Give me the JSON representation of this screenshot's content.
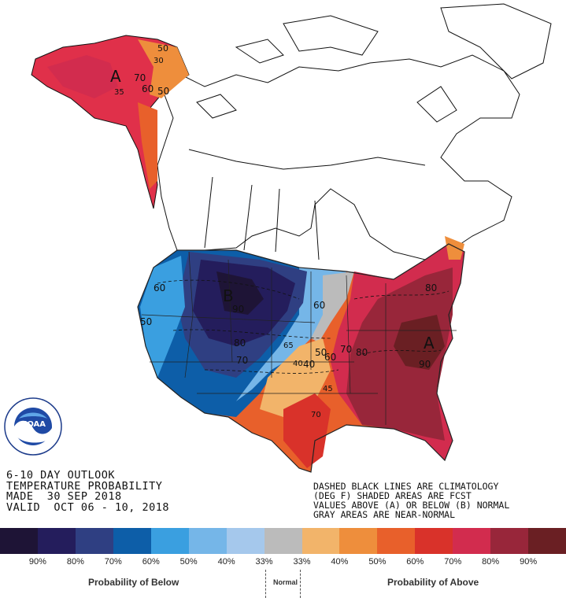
{
  "title": {
    "line1": "6-10 DAY OUTLOOK",
    "line2": "TEMPERATURE PROBABILITY",
    "line3": "MADE  30 SEP 2018",
    "line4": "VALID  OCT 06 - 10, 2018"
  },
  "notes": {
    "line1": "DASHED BLACK LINES ARE CLIMATOLOGY",
    "line2": "(DEG F) SHADED AREAS ARE FCST",
    "line3": "VALUES ABOVE (A) OR BELOW (B) NORMAL",
    "line4": "GRAY AREAS ARE NEAR-NORMAL"
  },
  "logo": {
    "text": "NOAA",
    "ring_text": "NATIONAL OCEANIC AND ATMOSPHERIC ADMINISTRATION · U.S. DEPARTMENT OF COMMERCE"
  },
  "legend": {
    "colors": [
      "#1e1436",
      "#241d5c",
      "#2f3f82",
      "#0d5ea8",
      "#3a9fe0",
      "#75b6e8",
      "#a5c8ec",
      "#bbbbbb",
      "#f2b46a",
      "#ee8e3c",
      "#e8602b",
      "#d9322a",
      "#d22c4e",
      "#98263a",
      "#6a1f23"
    ],
    "ticks": [
      "90%",
      "80%",
      "70%",
      "60%",
      "50%",
      "40%",
      "33%",
      "33%",
      "40%",
      "50%",
      "60%",
      "70%",
      "80%",
      "90%"
    ],
    "below_caption": "Probability of Below",
    "normal_caption": "Normal",
    "above_caption": "Probability of Above"
  },
  "map_labels": {
    "alaska_a": "A",
    "alaska_vals": [
      "50",
      "30",
      "70",
      "60",
      "50",
      "35"
    ],
    "west_b": "B",
    "east_a": "A",
    "below_vals": [
      "60",
      "50",
      "90",
      "80",
      "70",
      "65",
      "60"
    ],
    "above_vals": [
      "80",
      "70",
      "80",
      "60",
      "50",
      "40",
      "45",
      "70",
      "90",
      "40"
    ]
  }
}
